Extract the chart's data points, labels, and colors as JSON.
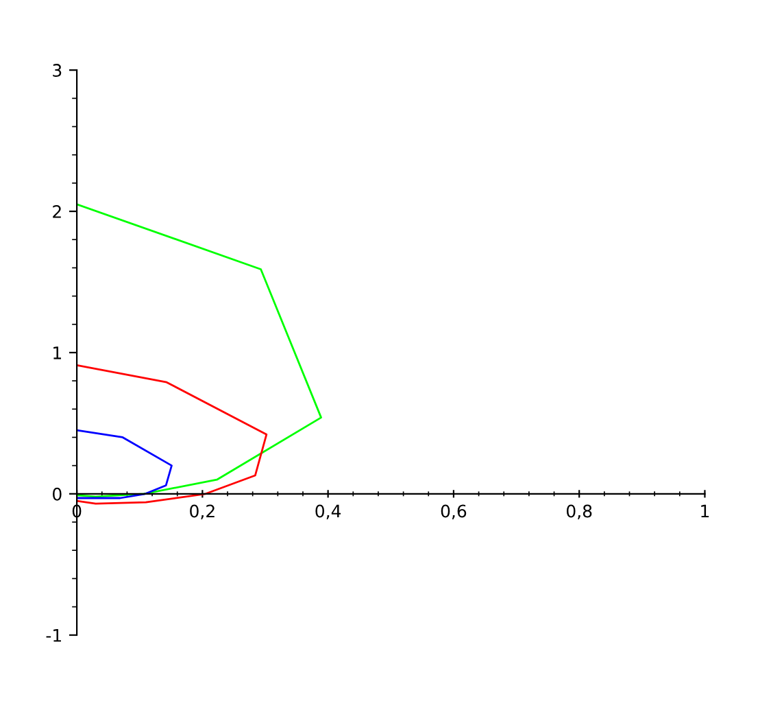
{
  "chart_data": {
    "type": "line",
    "xlim": [
      0,
      1
    ],
    "ylim": [
      -1,
      3
    ],
    "xticks": [
      {
        "value": 0,
        "label": "0"
      },
      {
        "value": 0.2,
        "label": "0,2"
      },
      {
        "value": 0.4,
        "label": "0,4"
      },
      {
        "value": 0.6,
        "label": "0,6"
      },
      {
        "value": 0.8,
        "label": "0,8"
      },
      {
        "value": 1,
        "label": "1"
      }
    ],
    "yticks": [
      {
        "value": -1,
        "label": "-1"
      },
      0,
      1,
      2,
      3
    ],
    "grid": false,
    "marker": "none",
    "line_style": "solid",
    "series": [
      {
        "color": "#00ff00",
        "x": [
          0,
          0.293,
          0.389,
          0.223,
          0.107,
          0.03,
          0
        ],
        "values": [
          2.05,
          1.59,
          0.54,
          0.1,
          0,
          -0.02,
          -0.01
        ]
      },
      {
        "color": "#ff0000",
        "x": [
          0,
          0.143,
          0.302,
          0.284,
          0.205,
          0.11,
          0.03,
          0
        ],
        "values": [
          0.91,
          0.79,
          0.42,
          0.13,
          0,
          -0.06,
          -0.07,
          -0.05
        ]
      },
      {
        "color": "#0000ff",
        "x": [
          0,
          0.073,
          0.151,
          0.142,
          0.109,
          0.069,
          0
        ],
        "values": [
          0.45,
          0.4,
          0.2,
          0.06,
          0,
          -0.03,
          -0.03
        ]
      }
    ]
  }
}
